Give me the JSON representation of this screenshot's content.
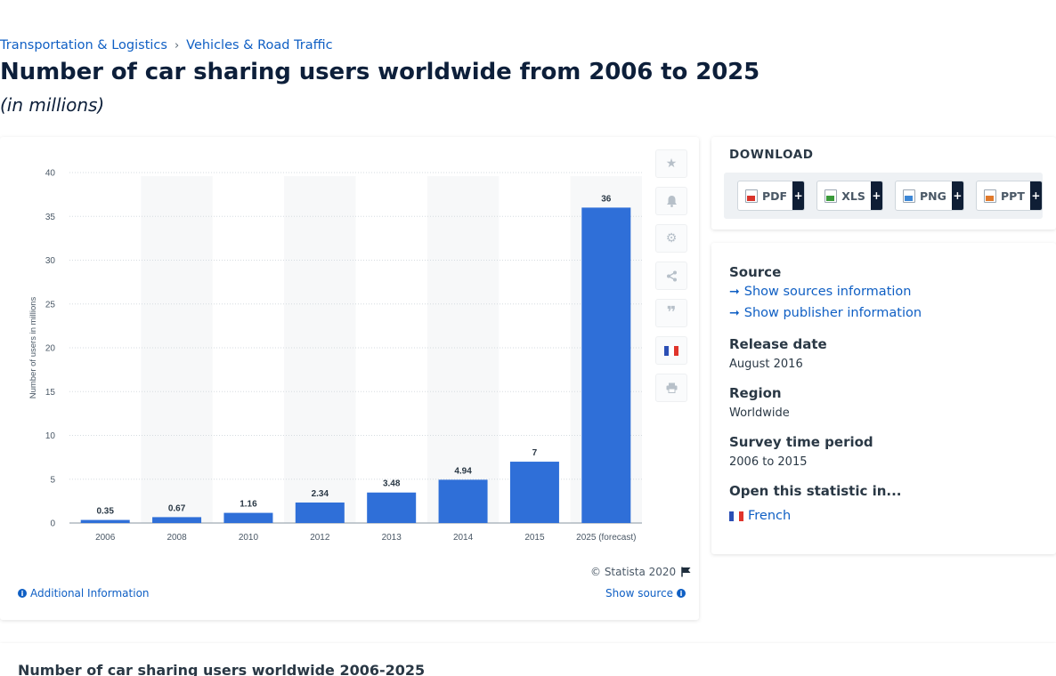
{
  "breadcrumb": {
    "item1": "Transportation & Logistics",
    "separator": "›",
    "item2": "Vehicles & Road Traffic"
  },
  "title": "Number of car sharing users worldwide from 2006 to 2025",
  "subtitle": "(in millions)",
  "chart_data": {
    "type": "bar",
    "categories": [
      "2006",
      "2008",
      "2010",
      "2012",
      "2013",
      "2014",
      "2015",
      "2025 (forecast)"
    ],
    "values": [
      0.35,
      0.67,
      1.16,
      2.34,
      3.48,
      4.94,
      7,
      36
    ],
    "value_labels": [
      "0.35",
      "0.67",
      "1.16",
      "2.34",
      "3.48",
      "4.94",
      "7",
      "36"
    ],
    "title": "",
    "xlabel": "",
    "ylabel": "Number of users in millions",
    "ylim": [
      0,
      40
    ],
    "yticks": [
      0,
      5,
      10,
      15,
      20,
      25,
      30,
      35,
      40
    ],
    "grid": true,
    "bar_color": "#2f6fd8"
  },
  "toolbar": {
    "icons": [
      "star-icon",
      "bell-icon",
      "gear-icon",
      "share-icon",
      "quote-icon",
      "french-flag-icon",
      "print-icon"
    ]
  },
  "chart_footer": {
    "copyright": "© Statista 2020",
    "additional_info": "Additional Information",
    "show_source": "Show source"
  },
  "download": {
    "title": "DOWNLOAD",
    "buttons": [
      {
        "label": "PDF",
        "color": "#d9342b"
      },
      {
        "label": "XLS",
        "color": "#3a9a3a"
      },
      {
        "label": "PNG",
        "color": "#3d87d6"
      },
      {
        "label": "PPT",
        "color": "#e0792b"
      }
    ],
    "plus": "+"
  },
  "info": {
    "source_label": "Source",
    "show_sources": "Show sources information",
    "show_publisher": "Show publisher information",
    "release_label": "Release date",
    "release_value": "August 2016",
    "region_label": "Region",
    "region_value": "Worldwide",
    "survey_label": "Survey time period",
    "survey_value": "2006 to 2015",
    "open_label": "Open this statistic in...",
    "open_language": "French"
  },
  "bottom": {
    "title": "Number of car sharing users worldwide 2006-2025"
  }
}
